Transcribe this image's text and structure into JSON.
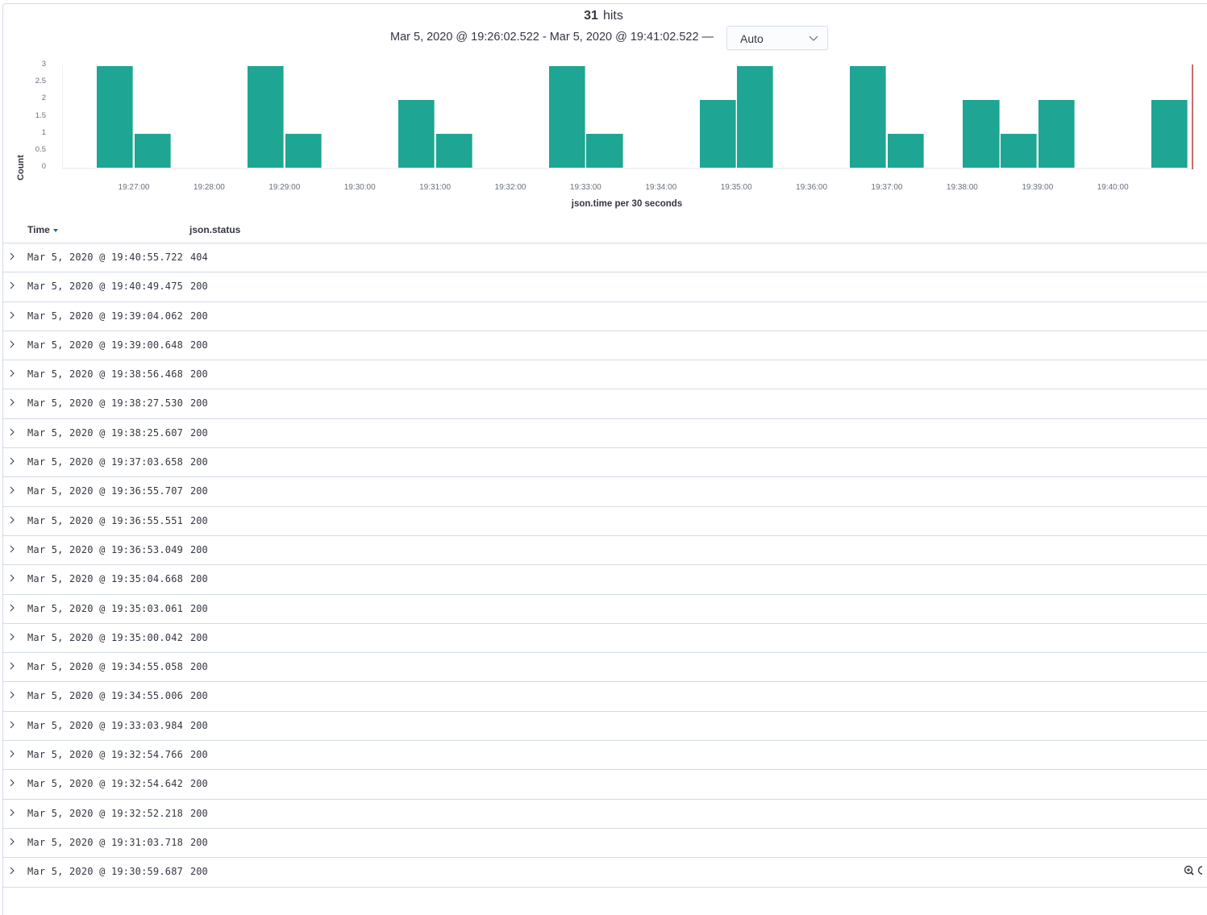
{
  "header": {
    "hits_count": "31",
    "hits_label": "hits",
    "time_range": "Mar 5, 2020 @ 19:26:02.522 - Mar 5, 2020 @ 19:41:02.522 —",
    "interval_select": {
      "value": "Auto",
      "icon": "chevron-down-icon"
    }
  },
  "colors": {
    "bar": "#1ea593",
    "now_marker": "#c96c6a",
    "sort_caret": "#006bb4",
    "border": "#d3dae6"
  },
  "chart_data": {
    "type": "bar",
    "title": "",
    "xlabel": "json.time per 30 seconds",
    "ylabel": "Count",
    "ylim": [
      0,
      3
    ],
    "yticks": [
      "3",
      "2.5",
      "2",
      "1.5",
      "1",
      "0.5",
      "0"
    ],
    "xticks": [
      "19:27:00",
      "19:28:00",
      "19:29:00",
      "19:30:00",
      "19:31:00",
      "19:32:00",
      "19:33:00",
      "19:34:00",
      "19:35:00",
      "19:36:00",
      "19:37:00",
      "19:38:00",
      "19:39:00",
      "19:40:00"
    ],
    "categories": [
      "19:26:30",
      "19:27:00",
      "19:28:30",
      "19:29:00",
      "19:30:30",
      "19:31:00",
      "19:32:30",
      "19:33:00",
      "19:34:30",
      "19:35:00",
      "19:36:30",
      "19:37:00",
      "19:38:00",
      "19:38:30",
      "19:39:00",
      "19:40:30"
    ],
    "values": [
      3,
      1,
      3,
      1,
      2,
      1,
      3,
      1,
      2,
      3,
      3,
      1,
      2,
      1,
      2,
      2
    ],
    "bucket_offsets_min": [
      -0.5,
      0,
      1.5,
      2,
      3.5,
      4,
      5.5,
      6,
      7.5,
      8,
      9.5,
      10,
      11,
      11.5,
      12,
      13.5
    ],
    "grid": false,
    "legend": "none"
  },
  "table": {
    "columns": [
      {
        "label": "Time",
        "sort": "descending"
      },
      {
        "label": "json.status"
      }
    ],
    "rows": [
      {
        "time": "Mar 5, 2020 @ 19:40:55.722",
        "status": "404"
      },
      {
        "time": "Mar 5, 2020 @ 19:40:49.475",
        "status": "200"
      },
      {
        "time": "Mar 5, 2020 @ 19:39:04.062",
        "status": "200"
      },
      {
        "time": "Mar 5, 2020 @ 19:39:00.648",
        "status": "200"
      },
      {
        "time": "Mar 5, 2020 @ 19:38:56.468",
        "status": "200"
      },
      {
        "time": "Mar 5, 2020 @ 19:38:27.530",
        "status": "200"
      },
      {
        "time": "Mar 5, 2020 @ 19:38:25.607",
        "status": "200"
      },
      {
        "time": "Mar 5, 2020 @ 19:37:03.658",
        "status": "200"
      },
      {
        "time": "Mar 5, 2020 @ 19:36:55.707",
        "status": "200"
      },
      {
        "time": "Mar 5, 2020 @ 19:36:55.551",
        "status": "200"
      },
      {
        "time": "Mar 5, 2020 @ 19:36:53.049",
        "status": "200"
      },
      {
        "time": "Mar 5, 2020 @ 19:35:04.668",
        "status": "200"
      },
      {
        "time": "Mar 5, 2020 @ 19:35:03.061",
        "status": "200"
      },
      {
        "time": "Mar 5, 2020 @ 19:35:00.042",
        "status": "200"
      },
      {
        "time": "Mar 5, 2020 @ 19:34:55.058",
        "status": "200"
      },
      {
        "time": "Mar 5, 2020 @ 19:34:55.006",
        "status": "200"
      },
      {
        "time": "Mar 5, 2020 @ 19:33:03.984",
        "status": "200"
      },
      {
        "time": "Mar 5, 2020 @ 19:32:54.766",
        "status": "200"
      },
      {
        "time": "Mar 5, 2020 @ 19:32:54.642",
        "status": "200"
      },
      {
        "time": "Mar 5, 2020 @ 19:32:52.218",
        "status": "200"
      },
      {
        "time": "Mar 5, 2020 @ 19:31:03.718",
        "status": "200"
      },
      {
        "time": "Mar 5, 2020 @ 19:30:59.687",
        "status": "200"
      }
    ]
  }
}
